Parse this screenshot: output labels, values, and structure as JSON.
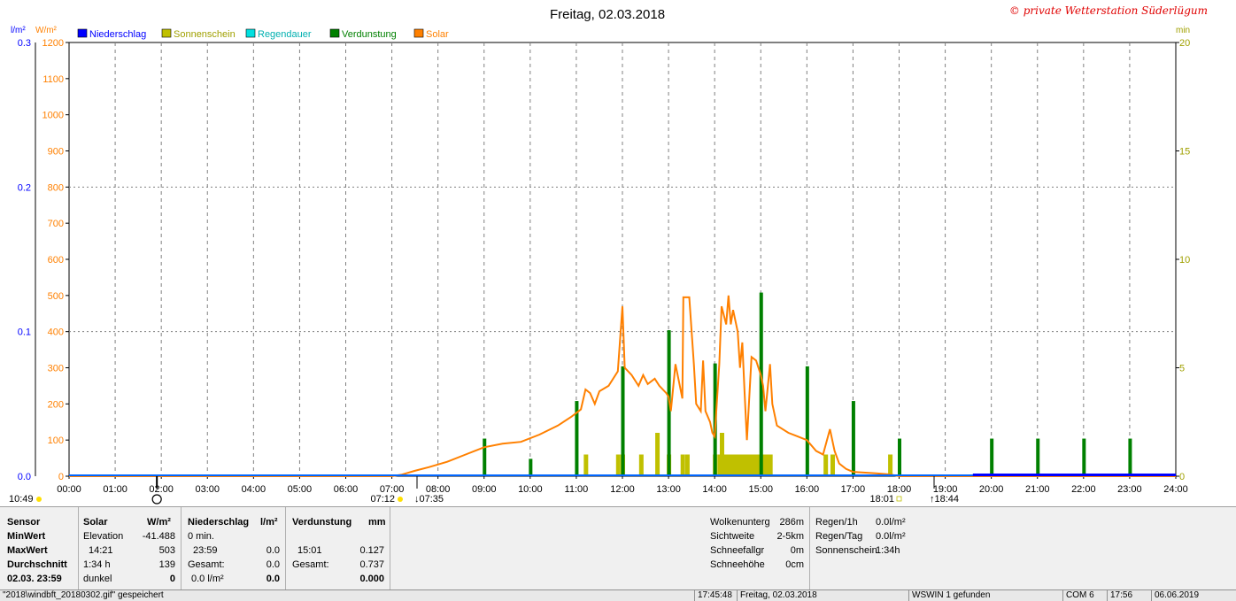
{
  "chart_data": {
    "type": "bar+line",
    "title": "Freitag, 02.03.2018",
    "copyright": "© private Wetterstation Süderlügum",
    "units": {
      "left_outer": "l/m²",
      "left_inner": "W/m²",
      "right": "min"
    },
    "legend": [
      {
        "name": "Niederschlag",
        "color": "#0000ff"
      },
      {
        "name": "Sonnenschein",
        "color": "#c0c000"
      },
      {
        "name": "Regendauer",
        "color": "#00e0e0"
      },
      {
        "name": "Verdunstung",
        "color": "#008000"
      },
      {
        "name": "Solar",
        "color": "#ff8000"
      }
    ],
    "y_left_outer": {
      "range": [
        0,
        0.3
      ],
      "ticks": [
        "0.0",
        "0.1",
        "0.2",
        "0.3"
      ]
    },
    "y_left_inner": {
      "range": [
        0,
        1200
      ],
      "ticks": [
        "0",
        "100",
        "200",
        "300",
        "400",
        "500",
        "600",
        "700",
        "800",
        "900",
        "1000",
        "1100",
        "1200"
      ]
    },
    "y_right": {
      "range": [
        0,
        20
      ],
      "ticks": [
        "0",
        "5",
        "10",
        "15",
        "20"
      ]
    },
    "x_ticks": [
      "00:00",
      "01:00",
      "02:00",
      "03:00",
      "04:00",
      "05:00",
      "06:00",
      "07:00",
      "08:00",
      "09:00",
      "10:00",
      "11:00",
      "12:00",
      "13:00",
      "14:00",
      "15:00",
      "16:00",
      "17:00",
      "18:00",
      "19:00",
      "20:00",
      "21:00",
      "22:00",
      "23:00",
      "24:00"
    ],
    "x_range_hours": [
      0,
      24
    ],
    "astro": {
      "moonset": "10:49",
      "sunrise": "07:12",
      "dawn": "07:35",
      "sunset": "18:01",
      "dusk": "18:44"
    },
    "solar_series": [
      [
        0,
        0
      ],
      [
        7.0,
        0
      ],
      [
        7.2,
        4
      ],
      [
        7.5,
        15
      ],
      [
        7.8,
        25
      ],
      [
        8.2,
        40
      ],
      [
        8.6,
        60
      ],
      [
        9.0,
        80
      ],
      [
        9.4,
        90
      ],
      [
        9.8,
        95
      ],
      [
        10.2,
        115
      ],
      [
        10.6,
        140
      ],
      [
        10.9,
        165
      ],
      [
        11.1,
        185
      ],
      [
        11.2,
        240
      ],
      [
        11.3,
        230
      ],
      [
        11.4,
        200
      ],
      [
        11.5,
        235
      ],
      [
        11.7,
        250
      ],
      [
        11.9,
        290
      ],
      [
        12.0,
        470
      ],
      [
        12.05,
        300
      ],
      [
        12.2,
        280
      ],
      [
        12.35,
        250
      ],
      [
        12.45,
        280
      ],
      [
        12.55,
        255
      ],
      [
        12.7,
        270
      ],
      [
        12.8,
        250
      ],
      [
        12.95,
        230
      ],
      [
        13.0,
        220
      ],
      [
        13.05,
        180
      ],
      [
        13.15,
        310
      ],
      [
        13.3,
        215
      ],
      [
        13.32,
        495
      ],
      [
        13.45,
        495
      ],
      [
        13.55,
        310
      ],
      [
        13.6,
        200
      ],
      [
        13.7,
        180
      ],
      [
        13.75,
        320
      ],
      [
        13.8,
        180
      ],
      [
        13.9,
        150
      ],
      [
        13.95,
        120
      ],
      [
        14.0,
        110
      ],
      [
        14.1,
        310
      ],
      [
        14.15,
        470
      ],
      [
        14.25,
        420
      ],
      [
        14.3,
        500
      ],
      [
        14.35,
        420
      ],
      [
        14.4,
        460
      ],
      [
        14.5,
        400
      ],
      [
        14.55,
        300
      ],
      [
        14.6,
        370
      ],
      [
        14.65,
        230
      ],
      [
        14.7,
        100
      ],
      [
        14.8,
        330
      ],
      [
        14.9,
        320
      ],
      [
        15.0,
        280
      ],
      [
        15.05,
        250
      ],
      [
        15.1,
        180
      ],
      [
        15.2,
        310
      ],
      [
        15.25,
        200
      ],
      [
        15.35,
        140
      ],
      [
        15.6,
        120
      ],
      [
        15.8,
        110
      ],
      [
        16.0,
        100
      ],
      [
        16.2,
        70
      ],
      [
        16.35,
        60
      ],
      [
        16.5,
        130
      ],
      [
        16.6,
        70
      ],
      [
        16.7,
        35
      ],
      [
        16.85,
        20
      ],
      [
        17.0,
        12
      ],
      [
        17.5,
        8
      ],
      [
        17.8,
        5
      ],
      [
        18.0,
        0
      ],
      [
        24,
        0
      ]
    ],
    "sunshine_bars_min": [
      [
        11.2,
        1
      ],
      [
        11.9,
        1
      ],
      [
        12.0,
        1
      ],
      [
        12.4,
        1
      ],
      [
        12.75,
        2
      ],
      [
        13.0,
        1
      ],
      [
        13.3,
        1
      ],
      [
        13.4,
        1
      ],
      [
        14.0,
        1
      ],
      [
        14.15,
        2
      ],
      [
        14.5,
        1
      ],
      [
        14.9,
        1
      ],
      [
        15.2,
        1
      ],
      [
        16.4,
        1
      ],
      [
        16.55,
        1
      ],
      [
        17.8,
        1
      ]
    ],
    "evaporation_bars_mm": [
      [
        9.0,
        0.026
      ],
      [
        10.0,
        0.012
      ],
      [
        11.0,
        0.052
      ],
      [
        12.0,
        0.076
      ],
      [
        13.0,
        0.101
      ],
      [
        14.0,
        0.078
      ],
      [
        15.0,
        0.127
      ],
      [
        16.0,
        0.076
      ],
      [
        17.0,
        0.052
      ],
      [
        18.0,
        0.026
      ],
      [
        20.0,
        0.026
      ],
      [
        21.0,
        0.026
      ],
      [
        22.0,
        0.026
      ],
      [
        23.0,
        0.026
      ]
    ],
    "precipitation_line": {
      "from_hour": 19.6,
      "to_hour": 24,
      "value": 0.0
    }
  },
  "info": {
    "sensor_header": "Sensor",
    "row_labels": [
      "MinWert",
      "MaxWert",
      "Durchschnitt",
      "02.03. 23:59"
    ],
    "solar": {
      "header": "Solar",
      "unit": "W/m²",
      "rows": [
        [
          "Elevation",
          "-41.488"
        ],
        [
          "14:21",
          "503"
        ],
        [
          "1:34 h",
          "139"
        ],
        [
          "dunkel",
          "0"
        ]
      ]
    },
    "niederschlag": {
      "header": "Niederschlag",
      "unit": "l/m²",
      "rows": [
        [
          "0 min.",
          ""
        ],
        [
          "23:59",
          "0.0"
        ],
        [
          "Gesamt:",
          "0.0"
        ],
        [
          "0.0 l/m²",
          "0.0"
        ]
      ]
    },
    "verdunstung": {
      "header": "Verdunstung",
      "unit": "mm",
      "rows": [
        [
          "",
          ""
        ],
        [
          "15:01",
          "0.127"
        ],
        [
          "Gesamt:",
          "0.737"
        ],
        [
          "",
          "0.000"
        ]
      ]
    },
    "weather": [
      [
        "Wolkenunterg",
        "286m"
      ],
      [
        "Sichtweite",
        "2-5km"
      ],
      [
        "Schneefallgr",
        "0m"
      ],
      [
        "Schneehöhe",
        "0cm"
      ]
    ],
    "rain": [
      [
        "Regen/1h",
        "0.0l/m²"
      ],
      [
        "Regen/Tag",
        "0.0l/m²"
      ],
      [
        "Sonnenschein",
        "1:34h"
      ]
    ]
  },
  "status_bar": [
    "\"2018\\windbft_20180302.gif\" gespeichert",
    "17:45:48",
    "Freitag, 02.03.2018",
    "WSWIN 1 gefunden",
    "COM 6",
    "17:56",
    "06.06.2019"
  ]
}
